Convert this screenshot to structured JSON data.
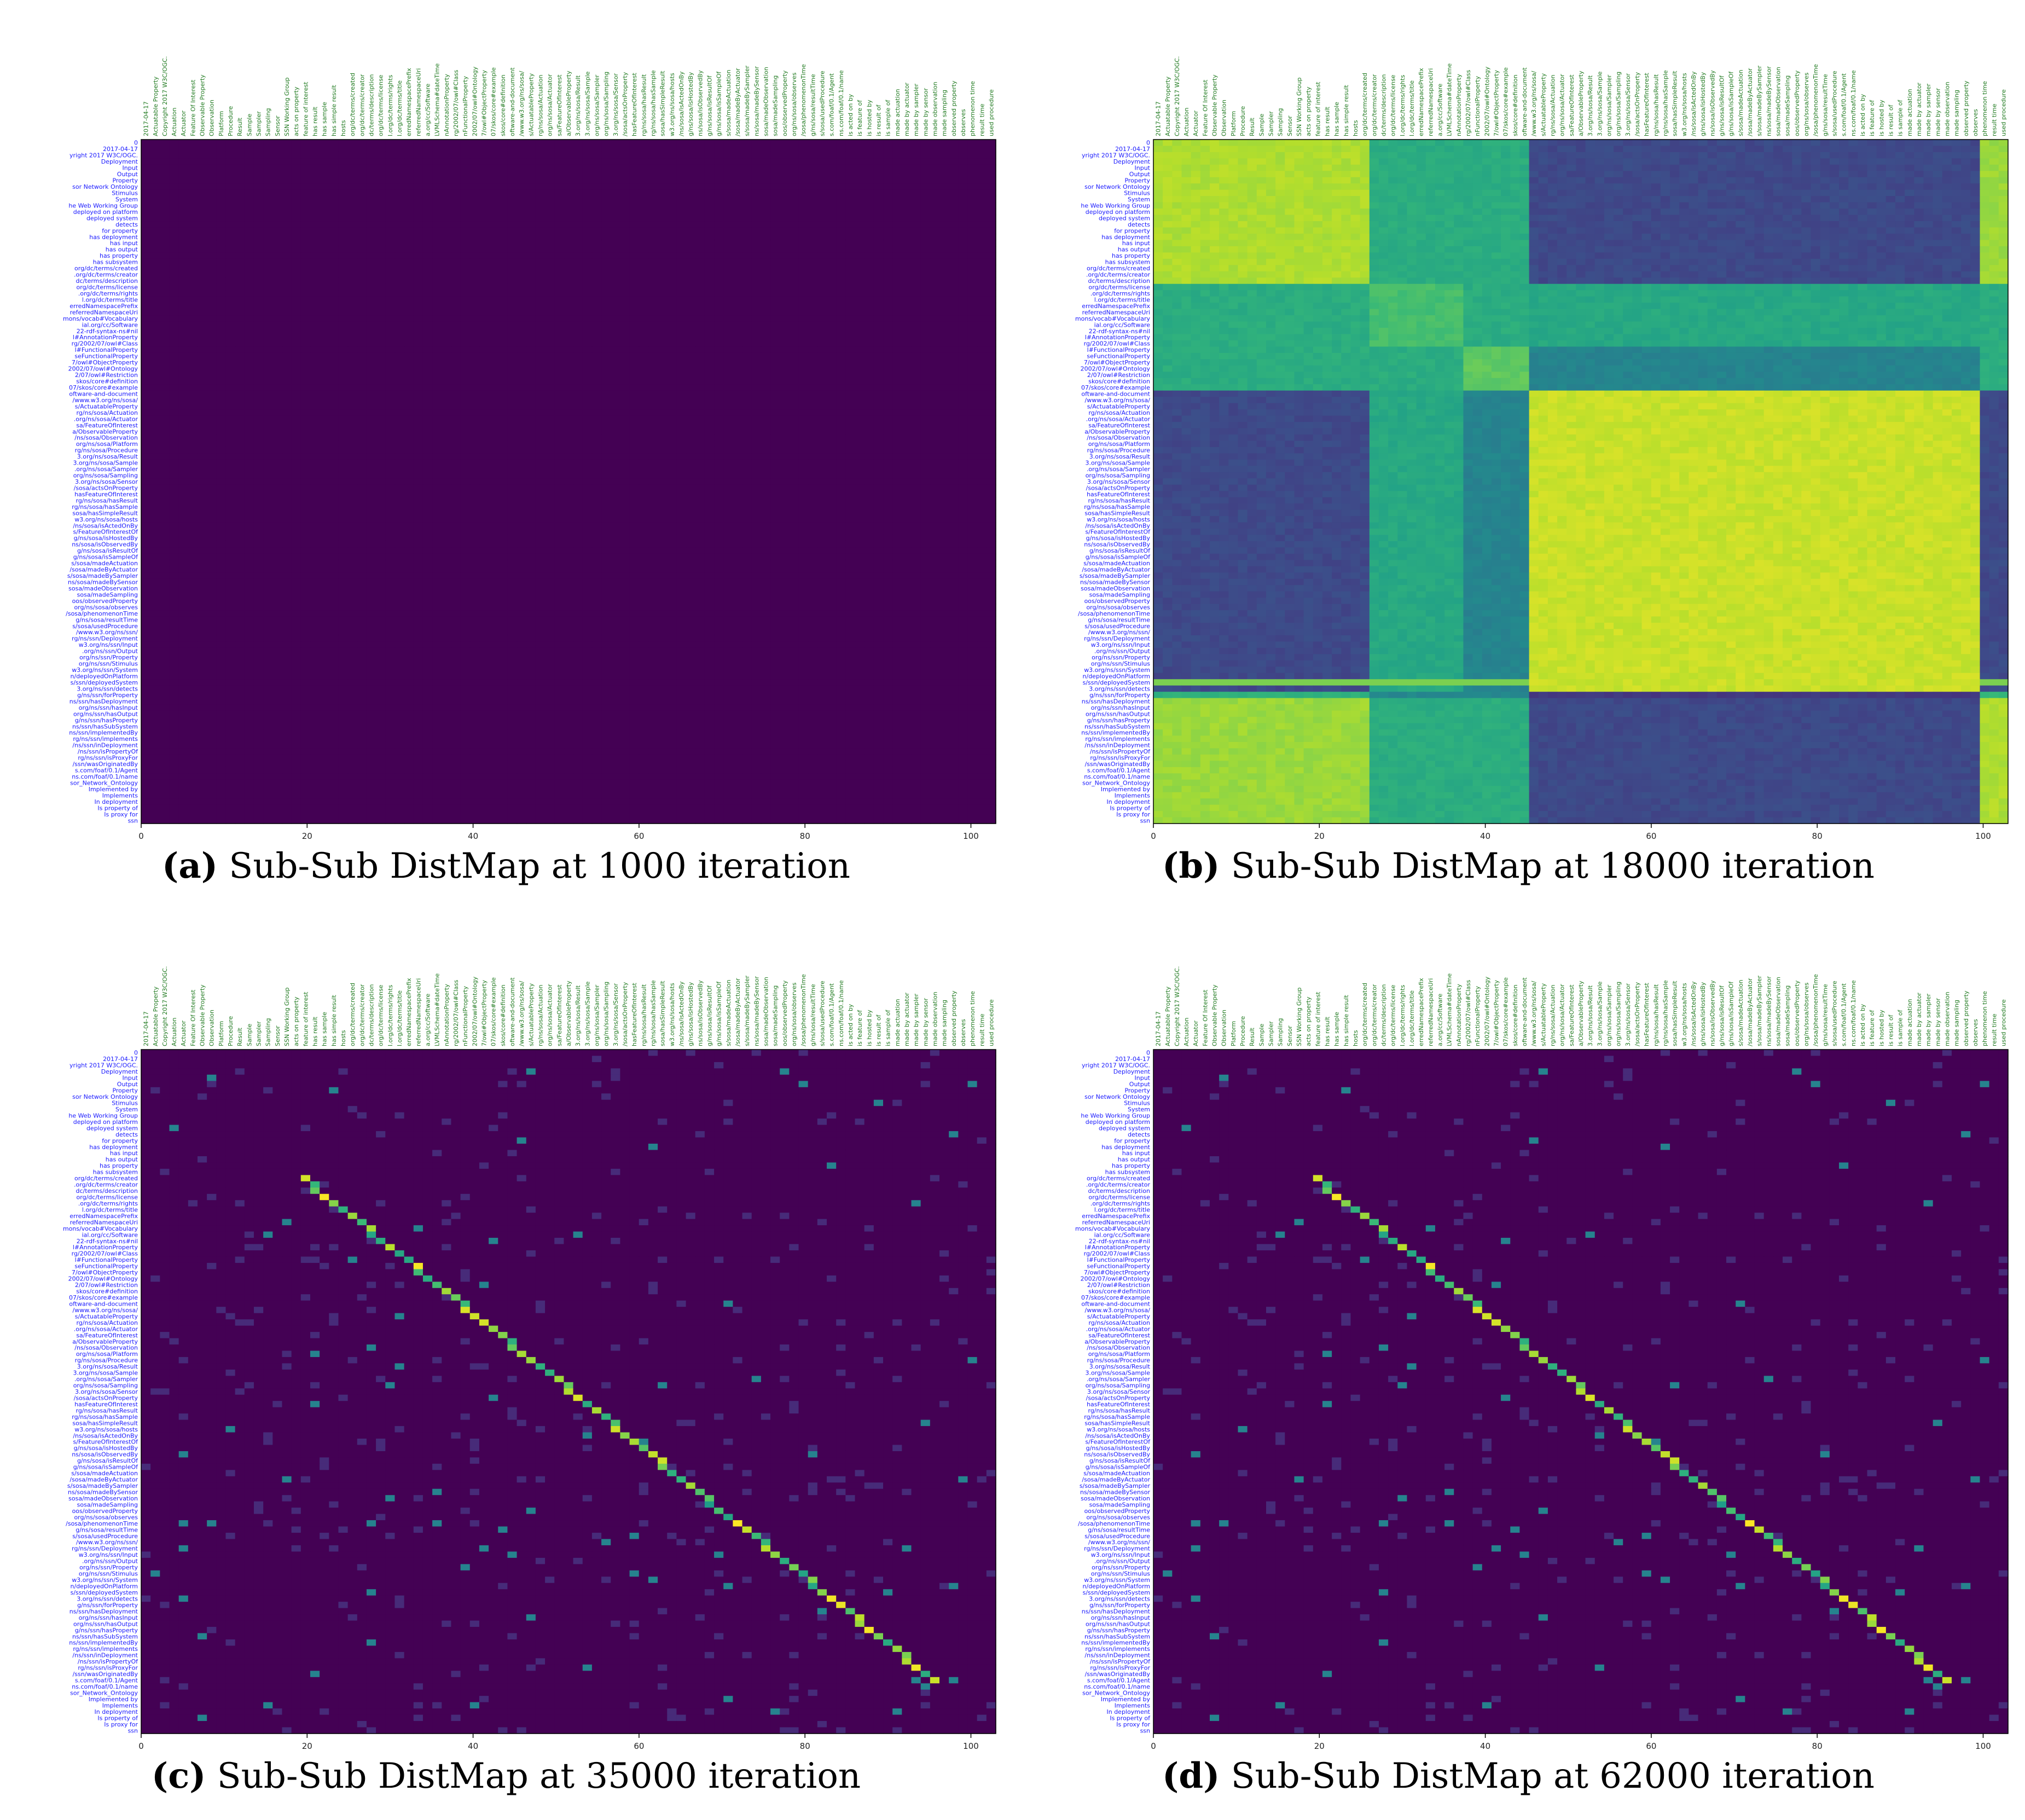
{
  "panels": [
    {
      "id": "a",
      "caption_label": "(a)",
      "caption_text": "Sub-Sub DistMap at 1000 iteration",
      "pattern": "uniform"
    },
    {
      "id": "b",
      "caption_label": "(b)",
      "caption_text": "Sub-Sub DistMap at 18000 iteration",
      "pattern": "block"
    },
    {
      "id": "c",
      "caption_label": "(c)",
      "caption_text": "Sub-Sub DistMap at 35000 iteration",
      "pattern": "diagonal"
    },
    {
      "id": "d",
      "caption_label": "(d)",
      "caption_text": "Sub-Sub DistMap at 62000 iteration",
      "pattern": "diagonal"
    }
  ],
  "chart_data": [
    {
      "type": "heatmap",
      "title": "",
      "xlabel": "",
      "ylabel": "",
      "xlim": [
        0,
        103
      ],
      "x_ticks": [
        0,
        20,
        40,
        60,
        80,
        100
      ],
      "value_range": [
        0,
        1
      ],
      "colormap": "viridis",
      "pattern": "uniform near 0"
    },
    {
      "type": "heatmap",
      "title": "",
      "xlabel": "",
      "ylabel": "",
      "xlim": [
        0,
        103
      ],
      "x_ticks": [
        0,
        20,
        40,
        60,
        80,
        100
      ],
      "value_range": [
        0,
        1
      ],
      "colormap": "viridis",
      "pattern": "block structure"
    },
    {
      "type": "heatmap",
      "title": "",
      "xlabel": "",
      "ylabel": "",
      "xlim": [
        0,
        103
      ],
      "x_ticks": [
        0,
        20,
        40,
        60,
        80,
        100
      ],
      "value_range": [
        0,
        1
      ],
      "colormap": "viridis",
      "pattern": "near-diagonal"
    },
    {
      "type": "heatmap",
      "title": "",
      "xlabel": "",
      "ylabel": "",
      "xlim": [
        0,
        103
      ],
      "x_ticks": [
        0,
        20,
        40,
        60,
        80,
        100
      ],
      "value_range": [
        0,
        1
      ],
      "colormap": "viridis",
      "pattern": "near-diagonal"
    }
  ],
  "row_labels": [
    "0",
    "2017-04-17",
    "yright 2017 W3C/OGC.",
    "Deployment",
    "Input",
    "Output",
    "Property",
    "sor Network Ontology",
    "Stimulus",
    "System",
    "he Web Working Group",
    "deployed on platform",
    "deployed system",
    "detects",
    "for property",
    "has deployment",
    "has input",
    "has output",
    "has property",
    "has subsystem",
    "org/dc/terms/created",
    ".org/dc/terms/creator",
    "dc/terms/description",
    "org/dc/terms/license",
    ".org/dc/terms/rights",
    "l.org/dc/terms/title",
    "erredNamespacePrefix",
    "referredNamespaceUri",
    "mons/vocab#Vocabulary",
    "ial.org/cc/Software",
    "22-rdf-syntax-ns#nil",
    "l#AnnotationProperty",
    "rg/2002/07/owl#Class",
    "l#FunctionalProperty",
    "seFunctionalProperty",
    "7/owl#ObjectProperty",
    "2002/07/owl#Ontology",
    "2/07/owl#Restriction",
    "skos/core#definition",
    "07/skos/core#example",
    "oftware-and-document",
    "/www.w3.org/ns/sosa/",
    "s/ActuatableProperty",
    "rg/ns/sosa/Actuation",
    ".org/ns/sosa/Actuator",
    "sa/FeatureOfInterest",
    "a/ObservableProperty",
    "/ns/sosa/Observation",
    "org/ns/sosa/Platform",
    "rg/ns/sosa/Procedure",
    "3.org/ns/sosa/Result",
    "3.org/ns/sosa/Sample",
    ".org/ns/sosa/Sampler",
    "org/ns/sosa/Sampling",
    "3.org/ns/sosa/Sensor",
    "/sosa/actsOnProperty",
    "hasFeatureOfInterest",
    "rg/ns/sosa/hasResult",
    "rg/ns/sosa/hasSample",
    "sosa/hasSimpleResult",
    "w3.org/ns/sosa/hosts",
    "/ns/sosa/isActedOnBy",
    "s/FeatureOfInterestOf",
    "g/ns/sosa/isHostedBy",
    "ns/sosa/isObservedBy",
    "g/ns/sosa/isResultOf",
    "g/ns/sosa/isSampleOf",
    "s/sosa/madeActuation",
    "/sosa/madeByActuator",
    "s/sosa/madeBySampler",
    "ns/sosa/madeBySensor",
    "sosa/madeObservation",
    "sosa/madeSampling",
    "oos/observedProperty",
    "org/ns/sosa/observes",
    "/sosa/phenomenonTime",
    "g/ns/sosa/resultTime",
    "s/sosa/usedProcedure",
    "/www.w3.org/ns/ssn/",
    "rg/ns/ssn/Deployment",
    "w3.org/ns/ssn/Input",
    ".org/ns/ssn/Output",
    "org/ns/ssn/Property",
    "org/ns/ssn/Stimulus",
    "w3.org/ns/ssn/System",
    "n/deployedOnPlatform",
    "s/ssn/deployedSystem",
    "3.org/ns/ssn/detects",
    "g/ns/ssn/forProperty",
    "ns/ssn/hasDeployment",
    "org/ns/ssn/hasInput",
    "org/ns/ssn/hasOutput",
    "g/ns/ssn/hasProperty",
    "ns/ssn/hasSubSystem",
    "ns/ssn/implementedBy",
    "rg/ns/ssn/implements",
    "/ns/ssn/inDeployment",
    "/ns/ssn/isPropertyOf",
    "rg/ns/ssn/isProxyFor",
    "/ssn/wasOriginatedBy",
    "s.com/foaf/0.1/Agent",
    "ns.com/foaf/0.1/name",
    "sor_Network_Ontology",
    "Implemented by",
    "Implements",
    "In deployment",
    "Is property of",
    "Is proxy for",
    "ssn"
  ],
  "col_labels": [
    "2017-04-17",
    "Actuatable Property",
    "Copyright 2017 W3C/OGC.",
    "Actuation",
    "Actuator",
    "Feature Of Interest",
    "Observable Property",
    "Observation",
    "Platform",
    "Procedure",
    "Result",
    "Sample",
    "Sampler",
    "Sampling",
    "Sensor",
    "SSN Working Group",
    "acts on property",
    "feature of interest",
    "has result",
    "has sample",
    "has simple result",
    "hosts",
    "org/dc/terms/created",
    "org/dc/terms/creator",
    "dc/terms/description",
    "org/dc/terms/license",
    "l.org/dc/terms/rights",
    "l.org/dc/terms/title",
    "erredNamespacePrefix",
    "referredNamespaceUri",
    "a.org/cc/Software",
    "LVMLSchema#dateTime",
    "nAnnotationProperty",
    "rg/2002/07/owl#Class",
    "nFunctionalProperty",
    "2002/07/owl#Ontology",
    "7/owl#ObjectProperty",
    "07/skos/core#example",
    "skos/core#definition",
    "oftware-and-document",
    "/www.w3.org/ns/sosa/",
    "s/ActuatableProperty",
    "rg/ns/sosa/Actuation",
    "org/ns/sosa/Actuator",
    "sa/FeatureOfInterest",
    "a/ObservableProperty",
    "3.org/ns/sosa/Result",
    "3.org/ns/sosa/Sample",
    "org/ns/sosa/Sampler",
    "org/ns/sosa/Sampling",
    "3.org/ns/sosa/Sensor",
    "/sosa/actsOnProperty",
    "hasFeatureOfInterest",
    "rg/ns/sosa/hasResult",
    "rg/ns/sosa/hasSample",
    "sosa/hasSimpleResult",
    "w3.org/ns/sosa/hosts",
    "/ns/sosa/isActedOnBy",
    "g/ns/sosa/isHostedBy",
    "ns/sosa/isObservedBy",
    "g/ns/sosa/isResultOf",
    "g/ns/sosa/isSampleOf",
    "s/sosa/madeActuation",
    "/sosa/madeByActuator",
    "s/sosa/madeBySampler",
    "ns/sosa/madeBySensor",
    "sosa/madeObservation",
    "sosa/madeSampling",
    "oos/observedProperty",
    "org/ns/sosa/observes",
    "/sosa/phenomenonTime",
    "g/ns/sosa/resultTime",
    "s/sosa/usedProcedure",
    "s.com/foaf/0.1/Agent",
    "ns.com/foaf/0.1/name",
    "is acted on by",
    "is feature of",
    "is hosted by",
    "is result of",
    "is sample of",
    "made actuation",
    "made by actuator",
    "made by sampler",
    "made by sensor",
    "made observation",
    "made sampling",
    "observed property",
    "observes",
    "phenomenon time",
    "result time",
    "used procedure"
  ],
  "x_tick_labels": [
    "0",
    "20",
    "40",
    "60",
    "80",
    "100"
  ]
}
